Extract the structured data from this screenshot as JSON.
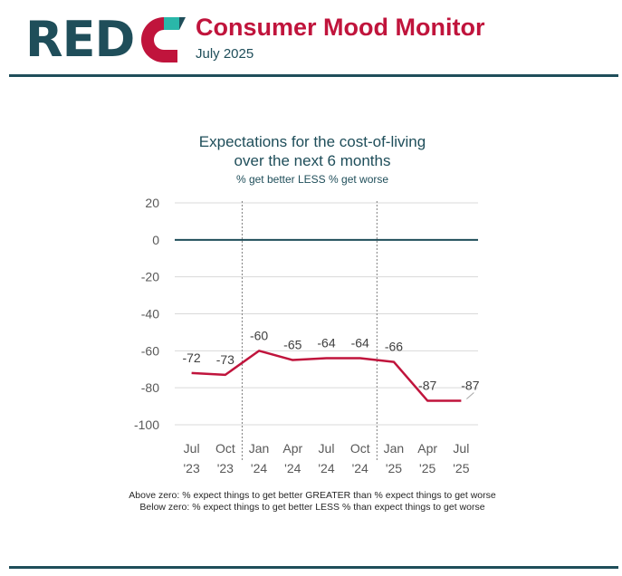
{
  "brand": {
    "logo_letters": "REDC",
    "logo_text": "RED",
    "colors": {
      "navy": "#1f4e5a",
      "crimson": "#c0143c",
      "teal": "#2ab7a9"
    }
  },
  "header": {
    "title": "Consumer Mood Monitor",
    "date": "July 2025"
  },
  "chart_data": {
    "type": "line",
    "title_line1": "Expectations for the cost-of-living",
    "title_line2": "over the next 6 months",
    "subtitle": "% get better LESS % get worse",
    "categories": [
      [
        "Jul",
        "'23"
      ],
      [
        "Oct",
        "'23"
      ],
      [
        "Jan",
        "'24"
      ],
      [
        "Apr",
        "'24"
      ],
      [
        "Jul",
        "'24"
      ],
      [
        "Oct",
        "'24"
      ],
      [
        "Jan",
        "'25"
      ],
      [
        "Apr",
        "'25"
      ],
      [
        "Jul",
        "'25"
      ]
    ],
    "series": [
      {
        "values": [
          -72,
          -73,
          -60,
          -65,
          -64,
          -64,
          -66,
          -87,
          -87
        ],
        "color": "#c0143c"
      }
    ],
    "ylim": [
      -100,
      20
    ],
    "yticks": [
      20,
      0,
      -20,
      -40,
      -60,
      -80,
      -100
    ],
    "zero_line_color": "#1f4e5a",
    "gridlines": true,
    "year_dividers_before": [
      "Jan '24",
      "Jan '25"
    ]
  },
  "notes": [
    "Above zero: % expect things to get better GREATER than % expect things to get worse",
    "Below zero: % expect things to get better LESS % than expect things to get worse"
  ]
}
